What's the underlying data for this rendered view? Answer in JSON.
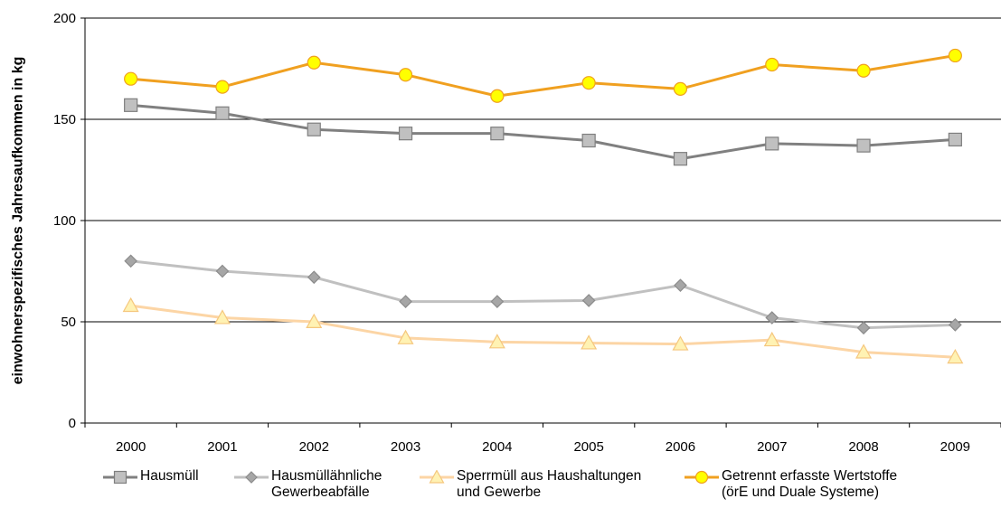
{
  "chart_data": {
    "type": "line",
    "title": "",
    "xlabel": "",
    "ylabel": "einwohnerspezifisches Jahresaufkommen  in kg",
    "categories": [
      "2000",
      "2001",
      "2002",
      "2003",
      "2004",
      "2005",
      "2006",
      "2007",
      "2008",
      "2009"
    ],
    "ylim": [
      0,
      200
    ],
    "yticks": [
      "0",
      "50",
      "100",
      "150",
      "200"
    ],
    "grid": true,
    "legend_position": "bottom",
    "series": [
      {
        "name": "Hausmüll",
        "label_lines": [
          "Hausmüll"
        ],
        "color": "#808080",
        "marker": "square",
        "marker_fill": "#c0c0c0",
        "values": [
          157,
          153,
          145,
          143,
          143,
          139.5,
          130.5,
          138,
          137,
          140
        ]
      },
      {
        "name": "Hausmüllähnliche Gewerbeabfälle",
        "label_lines": [
          "Hausmüllähnliche",
          "Gewerbeabfälle"
        ],
        "color": "#c0c0c0",
        "marker": "diamond",
        "marker_fill": "#a6a6a6",
        "values": [
          80,
          75,
          72,
          60,
          60,
          60.5,
          68,
          52,
          47,
          48.5
        ]
      },
      {
        "name": "Sperrmüll aus Haushaltungen und Gewerbe",
        "label_lines": [
          "Sperrmüll aus Haushaltungen",
          "und Gewerbe"
        ],
        "color": "#fcd5a5",
        "marker": "triangle",
        "marker_fill": "#fff2b3",
        "values": [
          58,
          52,
          50,
          42,
          40,
          39.5,
          39,
          41,
          35,
          32.5
        ]
      },
      {
        "name": "Getrennt erfasste Wertstoffe (örE und Duale Systeme)",
        "label_lines": [
          "Getrennt erfasste Wertstoffe",
          "(örE und Duale Systeme)"
        ],
        "color": "#f0a020",
        "marker": "circle",
        "marker_fill": "#ffff00",
        "values": [
          170,
          166,
          178,
          172,
          161.5,
          168,
          165,
          177,
          174,
          181.5
        ]
      }
    ]
  }
}
